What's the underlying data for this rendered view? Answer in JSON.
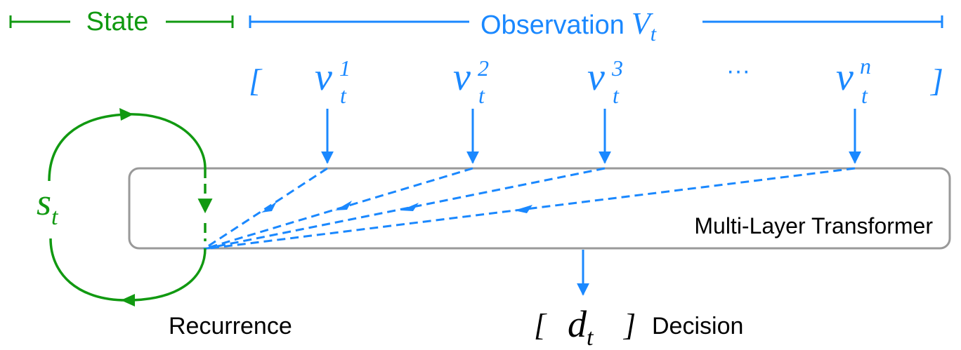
{
  "header": {
    "state_label": "State",
    "observation_label": "Observation",
    "observation_symbol": "V",
    "observation_subscript": "t"
  },
  "observations": {
    "open_bracket": "[",
    "close_bracket": "]",
    "ellipsis": "···",
    "items": [
      {
        "base": "v",
        "sub": "t",
        "sup": "1"
      },
      {
        "base": "v",
        "sub": "t",
        "sup": "2"
      },
      {
        "base": "v",
        "sub": "t",
        "sup": "3"
      },
      {
        "base": "v",
        "sub": "t",
        "sup": "n"
      }
    ]
  },
  "state": {
    "symbol": "s",
    "subscript": "t"
  },
  "transformer": {
    "label": "Multi-Layer Transformer"
  },
  "recurrence": {
    "label": "Recurrence"
  },
  "decision": {
    "open_bracket": "[",
    "symbol": "d",
    "subscript": "t",
    "close_bracket": "]",
    "label": "Decision"
  },
  "colors": {
    "green": "#119911",
    "blue": "#1a88ff",
    "box_border": "#999999",
    "text": "#000000"
  }
}
